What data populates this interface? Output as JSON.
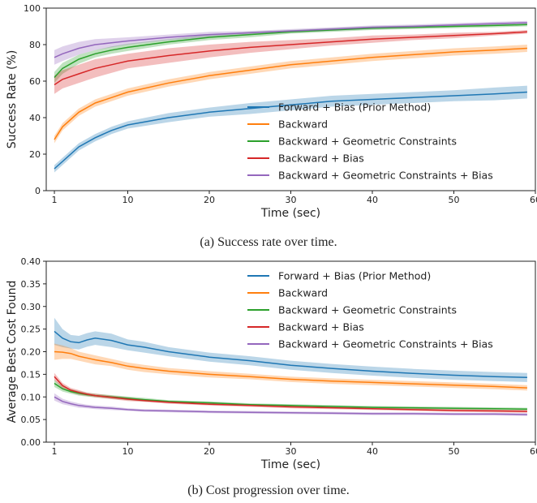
{
  "figure": {
    "caption_a": "(a) Success rate over time.",
    "caption_b": "(b) Cost progression over time."
  },
  "colors": {
    "forward": "#1f77b4",
    "backward": "#ff7f0e",
    "geometric": "#2ca02c",
    "bias": "#d62728",
    "geometric_bias": "#9467bd"
  },
  "chart_data": [
    {
      "type": "line",
      "title": "",
      "xlabel": "Time (sec)",
      "ylabel": "Success Rate (%)",
      "xlim": [
        0,
        60
      ],
      "ylim": [
        0,
        100
      ],
      "xticks": [
        1,
        10,
        20,
        30,
        40,
        50,
        60
      ],
      "yticks": [
        0,
        20,
        40,
        60,
        80,
        100
      ],
      "legend": "center-right",
      "x": [
        1,
        2,
        4,
        6,
        8,
        10,
        15,
        20,
        25,
        30,
        35,
        40,
        45,
        50,
        55,
        59
      ],
      "series": [
        {
          "name": "Forward + Bias (Prior Method)",
          "color": "#1f77b4",
          "values": [
            12,
            16,
            24,
            29,
            33,
            36,
            40,
            43,
            45,
            47,
            49,
            50,
            51,
            52,
            53,
            54
          ],
          "band": [
            2,
            2,
            2,
            2,
            2,
            2,
            2.5,
            2.5,
            3,
            3,
            3,
            3,
            3,
            3,
            3.5,
            3.5
          ]
        },
        {
          "name": "Backward",
          "color": "#ff7f0e",
          "values": [
            28,
            35,
            43,
            48,
            51,
            54,
            59,
            63,
            66,
            69,
            71,
            73,
            74.5,
            76,
            77,
            78
          ],
          "band": [
            2,
            2,
            2,
            2,
            2,
            2,
            2,
            2,
            2,
            2,
            2,
            2,
            2,
            2,
            2,
            2
          ]
        },
        {
          "name": "Backward + Geometric Constraints",
          "color": "#2ca02c",
          "values": [
            62,
            67,
            72,
            75,
            77,
            78.5,
            81.5,
            84,
            85.5,
            87,
            88,
            89,
            89.5,
            90,
            90.5,
            91
          ],
          "band": [
            3,
            3,
            2.5,
            2,
            2,
            2,
            1.5,
            1.5,
            1.5,
            1,
            1,
            1,
            1,
            1,
            1,
            1
          ]
        },
        {
          "name": "Backward + Bias",
          "color": "#d62728",
          "values": [
            58,
            61,
            64,
            67,
            69,
            71,
            74,
            76.5,
            78.5,
            80,
            81.5,
            83,
            84,
            85,
            86,
            87
          ],
          "band": [
            5,
            5,
            5,
            5,
            4.5,
            4,
            4,
            3.5,
            3,
            2.5,
            2,
            2,
            1.5,
            1.5,
            1,
            1
          ]
        },
        {
          "name": "Backward + Geometric Constraints + Bias",
          "color": "#9467bd",
          "values": [
            73,
            75,
            78,
            80,
            81,
            82,
            84,
            85.5,
            86.5,
            87.5,
            88.5,
            89.5,
            90,
            90.8,
            91.5,
            92
          ],
          "band": [
            4,
            4,
            3.5,
            3,
            2.5,
            2,
            1.5,
            1.5,
            1,
            1,
            1,
            1,
            1,
            1,
            1,
            1
          ]
        }
      ]
    },
    {
      "type": "line",
      "title": "",
      "xlabel": "Time (sec)",
      "ylabel": "Average Best Cost Found",
      "xlim": [
        0,
        60
      ],
      "ylim": [
        0,
        0.4
      ],
      "xticks": [
        1,
        10,
        20,
        30,
        40,
        50,
        60
      ],
      "yticks": [
        "0.00",
        "0.05",
        "0.10",
        "0.15",
        "0.20",
        "0.25",
        "0.30",
        "0.35",
        "0.40"
      ],
      "legend": "top-right",
      "x": [
        1,
        2,
        3,
        4,
        5,
        6,
        8,
        10,
        12,
        15,
        20,
        25,
        30,
        35,
        40,
        45,
        50,
        55,
        59
      ],
      "series": [
        {
          "name": "Forward + Bias (Prior Method)",
          "color": "#1f77b4",
          "values": [
            0.245,
            0.23,
            0.222,
            0.22,
            0.226,
            0.23,
            0.225,
            0.215,
            0.21,
            0.2,
            0.188,
            0.18,
            0.17,
            0.163,
            0.157,
            0.152,
            0.148,
            0.145,
            0.143
          ],
          "band": [
            0.03,
            0.02,
            0.015,
            0.015,
            0.015,
            0.015,
            0.015,
            0.012,
            0.012,
            0.01,
            0.01,
            0.01,
            0.01,
            0.01,
            0.01,
            0.01,
            0.01,
            0.01,
            0.01
          ]
        },
        {
          "name": "Backward",
          "color": "#ff7f0e",
          "values": [
            0.2,
            0.199,
            0.196,
            0.19,
            0.186,
            0.182,
            0.176,
            0.168,
            0.163,
            0.157,
            0.15,
            0.145,
            0.139,
            0.135,
            0.132,
            0.129,
            0.126,
            0.123,
            0.12
          ],
          "band": [
            0.018,
            0.015,
            0.012,
            0.01,
            0.01,
            0.01,
            0.008,
            0.008,
            0.008,
            0.007,
            0.007,
            0.006,
            0.006,
            0.006,
            0.006,
            0.006,
            0.006,
            0.006,
            0.006
          ]
        },
        {
          "name": "Backward + Geometric Constraints",
          "color": "#2ca02c",
          "values": [
            0.13,
            0.118,
            0.112,
            0.108,
            0.105,
            0.103,
            0.1,
            0.097,
            0.094,
            0.09,
            0.087,
            0.083,
            0.081,
            0.079,
            0.077,
            0.076,
            0.075,
            0.074,
            0.073
          ],
          "band": [
            0.008,
            0.006,
            0.005,
            0.005,
            0.004,
            0.004,
            0.004,
            0.004,
            0.004,
            0.003,
            0.003,
            0.003,
            0.003,
            0.003,
            0.003,
            0.003,
            0.003,
            0.003,
            0.003
          ]
        },
        {
          "name": "Backward + Bias",
          "color": "#d62728",
          "values": [
            0.145,
            0.125,
            0.115,
            0.11,
            0.106,
            0.103,
            0.099,
            0.095,
            0.092,
            0.088,
            0.084,
            0.081,
            0.078,
            0.076,
            0.074,
            0.072,
            0.07,
            0.069,
            0.068
          ],
          "band": [
            0.008,
            0.006,
            0.005,
            0.005,
            0.004,
            0.004,
            0.004,
            0.004,
            0.003,
            0.003,
            0.003,
            0.003,
            0.003,
            0.003,
            0.003,
            0.003,
            0.003,
            0.003,
            0.003
          ]
        },
        {
          "name": "Backward + Geometric Constraints + Bias",
          "color": "#9467bd",
          "values": [
            0.1,
            0.09,
            0.085,
            0.081,
            0.079,
            0.077,
            0.075,
            0.072,
            0.07,
            0.069,
            0.067,
            0.066,
            0.065,
            0.064,
            0.063,
            0.063,
            0.062,
            0.062,
            0.061
          ],
          "band": [
            0.008,
            0.006,
            0.005,
            0.005,
            0.004,
            0.004,
            0.004,
            0.003,
            0.003,
            0.003,
            0.003,
            0.003,
            0.003,
            0.003,
            0.003,
            0.003,
            0.003,
            0.003,
            0.003
          ]
        }
      ]
    }
  ]
}
